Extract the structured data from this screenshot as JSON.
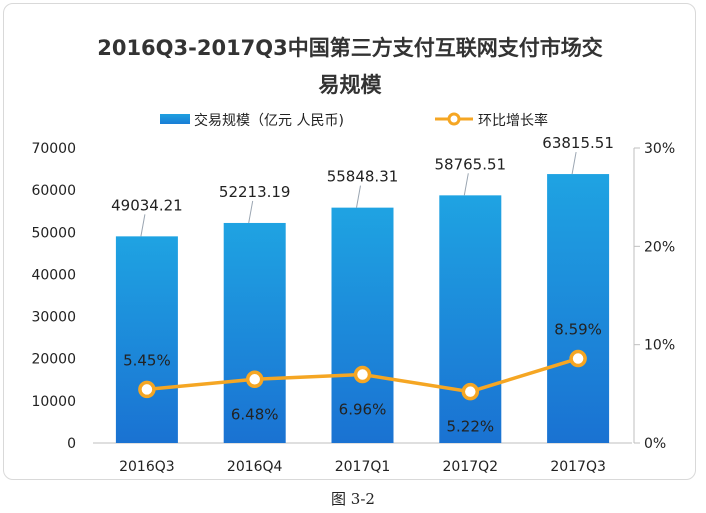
{
  "chart_data": {
    "type": "bar",
    "title": "2016Q3-2017Q3中国第三方支付互联网支付市场交易规模",
    "categories": [
      "2016Q3",
      "2016Q4",
      "2017Q1",
      "2017Q2",
      "2017Q3"
    ],
    "series": [
      {
        "name": "交易规模（亿元 人民币)",
        "type": "bar",
        "axis": "left",
        "values": [
          49034.21,
          52213.19,
          55848.31,
          58765.51,
          63815.51
        ],
        "labels": [
          "49034.21",
          "52213.19",
          "55848.31",
          "58765.51",
          "63815.51"
        ],
        "color": "#1a8ce0"
      },
      {
        "name": "环比增长率",
        "type": "line",
        "axis": "right",
        "values": [
          5.45,
          6.48,
          6.96,
          5.22,
          8.59
        ],
        "labels": [
          "5.45%",
          "6.48%",
          "6.96%",
          "5.22%",
          "8.59%"
        ],
        "color": "#f5a623"
      }
    ],
    "ylim": [
      0,
      70000
    ],
    "yticks": [
      "0",
      "10000",
      "20000",
      "30000",
      "40000",
      "50000",
      "60000",
      "70000"
    ],
    "y2lim": [
      0,
      30
    ],
    "y2ticks": [
      "0%",
      "10%",
      "20%",
      "30%"
    ],
    "legend_position": "top",
    "grid": false
  },
  "caption": "图 3-2"
}
